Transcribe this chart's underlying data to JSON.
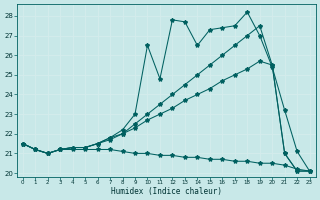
{
  "xlabel": "Humidex (Indice chaleur)",
  "background_color": "#c8e8e8",
  "grid_color": "#e0f0f0",
  "line_color": "#006060",
  "xlim": [
    -0.5,
    23.5
  ],
  "ylim": [
    19.8,
    28.6
  ],
  "xticks": [
    0,
    1,
    2,
    3,
    4,
    5,
    6,
    7,
    8,
    9,
    10,
    11,
    12,
    13,
    14,
    15,
    16,
    17,
    18,
    19,
    20,
    21,
    22,
    23
  ],
  "yticks": [
    20,
    21,
    22,
    23,
    24,
    25,
    26,
    27,
    28
  ],
  "line_jagged": [
    21.5,
    21.2,
    21.0,
    21.2,
    21.3,
    21.3,
    21.5,
    21.8,
    22.2,
    23.0,
    26.5,
    24.8,
    27.8,
    27.7,
    26.5,
    27.3,
    27.4,
    27.5,
    28.2,
    27.0,
    25.4,
    23.2,
    21.1,
    20.1
  ],
  "line_upper": [
    21.5,
    21.2,
    21.0,
    21.2,
    21.3,
    21.3,
    21.5,
    21.8,
    22.0,
    22.5,
    23.0,
    23.5,
    24.0,
    24.5,
    25.0,
    25.5,
    26.0,
    26.5,
    27.0,
    27.5,
    25.5,
    21.0,
    20.1,
    20.1
  ],
  "line_mid": [
    21.5,
    21.2,
    21.0,
    21.2,
    21.3,
    21.3,
    21.5,
    21.7,
    22.0,
    22.3,
    22.7,
    23.0,
    23.3,
    23.7,
    24.0,
    24.3,
    24.7,
    25.0,
    25.3,
    25.7,
    25.5,
    21.0,
    20.1,
    20.1
  ],
  "line_flat": [
    21.5,
    21.2,
    21.0,
    21.2,
    21.2,
    21.2,
    21.2,
    21.2,
    21.1,
    21.0,
    21.0,
    20.9,
    20.9,
    20.8,
    20.8,
    20.7,
    20.7,
    20.6,
    20.6,
    20.5,
    20.5,
    20.4,
    20.2,
    20.1
  ]
}
